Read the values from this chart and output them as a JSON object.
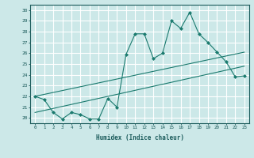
{
  "xlabel": "Humidex (Indice chaleur)",
  "bg_color": "#cce8e8",
  "grid_color": "#ffffff",
  "line_color": "#1a7a6e",
  "xlim": [
    -0.5,
    23.5
  ],
  "ylim": [
    19.5,
    30.5
  ],
  "xticks": [
    0,
    1,
    2,
    3,
    4,
    5,
    6,
    7,
    8,
    9,
    10,
    11,
    12,
    13,
    14,
    15,
    16,
    17,
    18,
    19,
    20,
    21,
    22,
    23
  ],
  "yticks": [
    20,
    21,
    22,
    23,
    24,
    25,
    26,
    27,
    28,
    29,
    30
  ],
  "series1": [
    22.0,
    21.7,
    20.5,
    19.9,
    20.5,
    20.3,
    19.9,
    19.9,
    21.8,
    21.0,
    25.9,
    27.8,
    27.8,
    25.5,
    26.0,
    29.0,
    28.3,
    29.8,
    27.8,
    27.0,
    26.1,
    25.2,
    23.8,
    23.9
  ],
  "series2_x": [
    0,
    23
  ],
  "series2_y": [
    22.0,
    26.1
  ],
  "series3_x": [
    0,
    23
  ],
  "series3_y": [
    20.5,
    24.8
  ]
}
